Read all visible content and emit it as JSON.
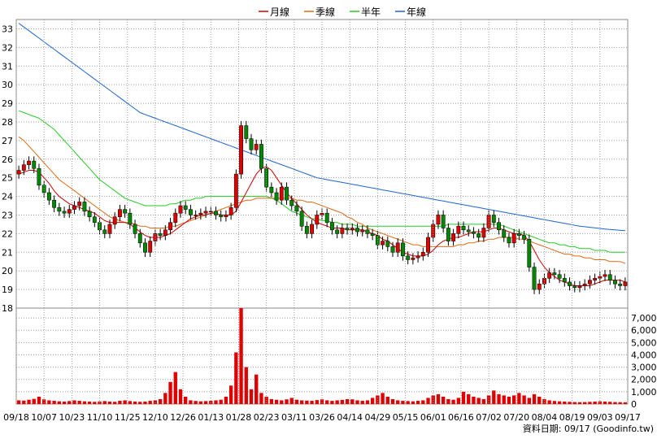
{
  "chart_data": {
    "type": "candlestick",
    "price_axis": {
      "min": 18,
      "max": 33.5,
      "ticks": [
        "33",
        "32",
        "31",
        "30",
        "29",
        "28",
        "27",
        "26",
        "25",
        "24",
        "23",
        "22",
        "21",
        "20",
        "19",
        "18"
      ]
    },
    "volume_axis": {
      "min": 0,
      "max": 7800,
      "ticks": [
        "7,000",
        "6,000",
        "5,000",
        "4,000",
        "3,000",
        "2,000",
        "1,000",
        "0"
      ]
    },
    "x_ticks": [
      "09/18",
      "10/07",
      "10/23",
      "11/10",
      "11/25",
      "12/10",
      "12/26",
      "01/13",
      "01/28",
      "02/23",
      "03/11",
      "03/26",
      "04/14",
      "04/29",
      "05/15",
      "06/01",
      "06/16",
      "07/02",
      "07/20",
      "08/04",
      "08/19",
      "09/03",
      "09/17"
    ],
    "legend": [
      {
        "name": "月線",
        "color": "#d40000"
      },
      {
        "name": "季線",
        "color": "#e06a10"
      },
      {
        "name": "半年",
        "color": "#22cc22"
      },
      {
        "name": "年線",
        "color": "#1e64d2"
      }
    ],
    "close": [
      25.4,
      25.7,
      25.9,
      25.5,
      24.6,
      24.2,
      23.8,
      23.4,
      23.2,
      23.1,
      23.3,
      23.5,
      23.7,
      23.2,
      22.9,
      22.6,
      22.2,
      22.0,
      22.5,
      22.9,
      23.3,
      23.1,
      22.5,
      22.0,
      21.5,
      21.0,
      21.6,
      22.0,
      21.9,
      22.2,
      22.6,
      23.1,
      23.5,
      23.3,
      23.0,
      23.0,
      23.1,
      23.2,
      23.2,
      23.0,
      22.9,
      23.0,
      23.4,
      25.2,
      27.8,
      27.1,
      26.5,
      26.8,
      25.5,
      24.5,
      24.2,
      23.8,
      24.5,
      23.8,
      23.5,
      23.2,
      22.4,
      22.0,
      22.5,
      23.0,
      23.1,
      22.6,
      22.2,
      22.0,
      22.3,
      22.2,
      22.3,
      22.1,
      22.2,
      22.0,
      21.9,
      21.4,
      21.6,
      21.3,
      21.0,
      21.5,
      20.8,
      20.6,
      20.7,
      20.8,
      21.0,
      21.8,
      22.5,
      23.0,
      22.3,
      21.6,
      22.0,
      22.4,
      22.2,
      22.1,
      22.0,
      21.8,
      22.3,
      23.0,
      22.6,
      22.2,
      21.8,
      21.5,
      22.0,
      21.9,
      21.7,
      20.2,
      19.0,
      19.3,
      19.6,
      19.9,
      19.8,
      19.6,
      19.4,
      19.2,
      19.1,
      19.2,
      19.3,
      19.5,
      19.6,
      19.7,
      19.8,
      19.5,
      19.3,
      19.2,
      19.4
    ],
    "open": [
      25.2,
      25.4,
      25.7,
      25.9,
      25.5,
      24.6,
      24.2,
      23.8,
      23.4,
      23.2,
      23.1,
      23.3,
      23.5,
      23.7,
      23.2,
      22.9,
      22.6,
      22.2,
      22.0,
      22.5,
      22.9,
      23.3,
      23.1,
      22.5,
      22.0,
      21.5,
      21.0,
      21.6,
      22.0,
      21.9,
      22.2,
      22.6,
      23.1,
      23.5,
      23.3,
      23.0,
      23.0,
      23.1,
      23.2,
      23.2,
      23.0,
      22.9,
      23.0,
      23.4,
      25.2,
      27.8,
      27.1,
      26.5,
      26.8,
      25.5,
      24.5,
      24.2,
      23.8,
      24.5,
      23.8,
      23.5,
      23.2,
      22.4,
      22.0,
      22.5,
      23.0,
      23.1,
      22.6,
      22.2,
      22.0,
      22.3,
      22.2,
      22.3,
      22.1,
      22.2,
      22.0,
      21.9,
      21.4,
      21.6,
      21.3,
      21.0,
      21.5,
      20.8,
      20.6,
      20.7,
      20.8,
      21.0,
      21.8,
      22.5,
      23.0,
      22.3,
      21.6,
      22.0,
      22.4,
      22.2,
      22.1,
      22.0,
      21.8,
      22.3,
      23.0,
      22.6,
      22.2,
      21.8,
      21.5,
      22.0,
      21.9,
      21.7,
      20.2,
      19.0,
      19.3,
      19.6,
      19.9,
      19.8,
      19.6,
      19.4,
      19.2,
      19.1,
      19.2,
      19.3,
      19.5,
      19.6,
      19.7,
      19.8,
      19.5,
      19.3,
      19.2
    ],
    "ma_month": [
      25.2,
      25.3,
      25.4,
      25.4,
      25.3,
      25.0,
      24.7,
      24.3,
      24.0,
      23.8,
      23.6,
      23.5,
      23.4,
      23.3,
      23.2,
      23.1,
      22.9,
      22.7,
      22.6,
      22.6,
      22.6,
      22.6,
      22.5,
      22.3,
      22.1,
      21.9,
      21.8,
      21.8,
      21.8,
      21.9,
      22.0,
      22.2,
      22.4,
      22.6,
      22.8,
      22.9,
      23.0,
      23.0,
      23.1,
      23.1,
      23.0,
      23.0,
      23.0,
      23.2,
      23.7,
      24.2,
      24.7,
      25.2,
      25.5,
      25.6,
      25.4,
      25.0,
      24.6,
      24.2,
      23.9,
      23.6,
      23.3,
      23.0,
      22.8,
      22.6,
      22.5,
      22.4,
      22.3,
      22.3,
      22.3,
      22.2,
      22.2,
      22.2,
      22.2,
      22.1,
      22.0,
      21.9,
      21.7,
      21.6,
      21.4,
      21.2,
      21.0,
      20.9,
      20.8,
      20.8,
      20.8,
      20.9,
      21.1,
      21.4,
      21.6,
      21.7,
      21.8,
      21.8,
      21.9,
      22.0,
      22.1,
      22.1,
      22.1,
      22.2,
      22.3,
      22.3,
      22.2,
      22.1,
      22.0,
      22.0,
      21.9,
      21.6,
      21.1,
      20.6,
      20.2,
      19.9,
      19.7,
      19.5,
      19.4,
      19.3,
      19.2,
      19.2,
      19.2,
      19.2,
      19.3,
      19.4,
      19.5,
      19.5,
      19.5,
      19.5,
      19.4
    ],
    "ma_quarter": [
      27.2,
      27.0,
      26.7,
      26.4,
      26.1,
      25.8,
      25.5,
      25.2,
      24.9,
      24.7,
      24.5,
      24.3,
      24.1,
      23.9,
      23.7,
      23.5,
      23.3,
      23.1,
      22.9,
      22.8,
      22.7,
      22.6,
      22.6,
      22.5,
      22.4,
      22.4,
      22.3,
      22.3,
      22.3,
      22.3,
      22.4,
      22.4,
      22.5,
      22.6,
      22.7,
      22.8,
      22.9,
      23.0,
      23.1,
      23.2,
      23.3,
      23.4,
      23.5,
      23.6,
      23.7,
      23.8,
      23.8,
      23.9,
      23.9,
      23.9,
      23.9,
      23.9,
      23.9,
      23.9,
      23.9,
      23.8,
      23.8,
      23.7,
      23.7,
      23.6,
      23.5,
      23.4,
      23.3,
      23.2,
      23.1,
      22.9,
      22.8,
      22.6,
      22.5,
      22.3,
      22.2,
      22.1,
      22.0,
      21.9,
      21.8,
      21.7,
      21.6,
      21.5,
      21.4,
      21.4,
      21.3,
      21.3,
      21.3,
      21.3,
      21.3,
      21.3,
      21.3,
      21.4,
      21.4,
      21.5,
      21.5,
      21.6,
      21.6,
      21.7,
      21.7,
      21.8,
      21.8,
      21.8,
      21.8,
      21.7,
      21.7,
      21.6,
      21.5,
      21.4,
      21.3,
      21.2,
      21.1,
      21.0,
      20.9,
      20.9,
      20.8,
      20.8,
      20.7,
      20.7,
      20.6,
      20.6,
      20.6,
      20.5,
      20.5,
      20.5,
      20.4
    ],
    "ma_half": [
      28.6,
      28.5,
      28.4,
      28.3,
      28.2,
      28.0,
      27.8,
      27.6,
      27.3,
      27.0,
      26.7,
      26.4,
      26.1,
      25.8,
      25.5,
      25.2,
      24.9,
      24.7,
      24.5,
      24.3,
      24.1,
      23.9,
      23.8,
      23.7,
      23.6,
      23.5,
      23.5,
      23.5,
      23.5,
      23.5,
      23.6,
      23.6,
      23.7,
      23.8,
      23.8,
      23.9,
      23.9,
      24.0,
      24.0,
      24.0,
      24.0,
      24.0,
      24.0,
      24.0,
      24.0,
      24.0,
      24.0,
      24.0,
      24.0,
      24.0,
      23.9,
      23.8,
      23.6,
      23.4,
      23.2,
      23.1,
      23.0,
      22.9,
      22.8,
      22.8,
      22.7,
      22.7,
      22.6,
      22.6,
      22.5,
      22.5,
      22.5,
      22.4,
      22.4,
      22.4,
      22.4,
      22.4,
      22.4,
      22.4,
      22.4,
      22.4,
      22.4,
      22.4,
      22.4,
      22.4,
      22.4,
      22.4,
      22.4,
      22.4,
      22.4,
      22.5,
      22.5,
      22.5,
      22.5,
      22.5,
      22.5,
      22.5,
      22.5,
      22.5,
      22.5,
      22.5,
      22.4,
      22.3,
      22.2,
      22.1,
      22.0,
      21.9,
      21.8,
      21.7,
      21.6,
      21.5,
      21.5,
      21.4,
      21.4,
      21.3,
      21.3,
      21.2,
      21.2,
      21.2,
      21.1,
      21.1,
      21.1,
      21.0,
      21.0,
      21.0,
      21.0
    ],
    "ma_year": [
      33.3,
      33.1,
      32.9,
      32.7,
      32.5,
      32.3,
      32.1,
      31.9,
      31.7,
      31.5,
      31.3,
      31.1,
      30.9,
      30.7,
      30.5,
      30.3,
      30.1,
      29.9,
      29.7,
      29.5,
      29.3,
      29.1,
      28.9,
      28.7,
      28.5,
      28.4,
      28.3,
      28.2,
      28.1,
      28.0,
      27.9,
      27.8,
      27.7,
      27.6,
      27.5,
      27.4,
      27.3,
      27.2,
      27.1,
      27.0,
      26.9,
      26.8,
      26.7,
      26.6,
      26.5,
      26.4,
      26.3,
      26.2,
      26.1,
      26.0,
      25.9,
      25.8,
      25.7,
      25.6,
      25.5,
      25.4,
      25.3,
      25.2,
      25.1,
      25.0,
      24.95,
      24.9,
      24.85,
      24.8,
      24.75,
      24.7,
      24.65,
      24.6,
      24.55,
      24.5,
      24.45,
      24.4,
      24.35,
      24.3,
      24.25,
      24.2,
      24.15,
      24.1,
      24.05,
      24.0,
      23.95,
      23.9,
      23.85,
      23.8,
      23.75,
      23.7,
      23.65,
      23.6,
      23.55,
      23.5,
      23.45,
      23.4,
      23.35,
      23.3,
      23.25,
      23.2,
      23.15,
      23.1,
      23.05,
      23.0,
      22.95,
      22.9,
      22.85,
      22.8,
      22.75,
      22.7,
      22.65,
      22.6,
      22.55,
      22.5,
      22.45,
      22.4,
      22.37,
      22.34,
      22.31,
      22.28,
      22.25,
      22.22,
      22.2,
      22.18,
      22.16
    ],
    "volume": [
      300,
      280,
      350,
      420,
      600,
      380,
      300,
      260,
      220,
      200,
      240,
      300,
      260,
      220,
      200,
      180,
      210,
      240,
      200,
      180,
      260,
      300,
      240,
      200,
      180,
      200,
      260,
      300,
      400,
      900,
      1800,
      2600,
      1200,
      600,
      300,
      250,
      220,
      240,
      260,
      300,
      350,
      600,
      1500,
      4200,
      7800,
      3000,
      1200,
      2400,
      900,
      600,
      400,
      350,
      300,
      380,
      500,
      350,
      300,
      280,
      260,
      320,
      380,
      300,
      260,
      300,
      340,
      400,
      380,
      300,
      260,
      300,
      500,
      700,
      900,
      600,
      400,
      300,
      260,
      240,
      220,
      260,
      300,
      500,
      700,
      800,
      600,
      400,
      350,
      500,
      1000,
      800,
      600,
      500,
      400,
      700,
      1100,
      800,
      700,
      600,
      700,
      900,
      700,
      500,
      800,
      600,
      400,
      300,
      250,
      220,
      200,
      180,
      160,
      150,
      160,
      180,
      200,
      220,
      200,
      180,
      160,
      150,
      140
    ]
  },
  "footer": {
    "source": "資料日期: 09/17  (Goodinfo.tw)"
  }
}
